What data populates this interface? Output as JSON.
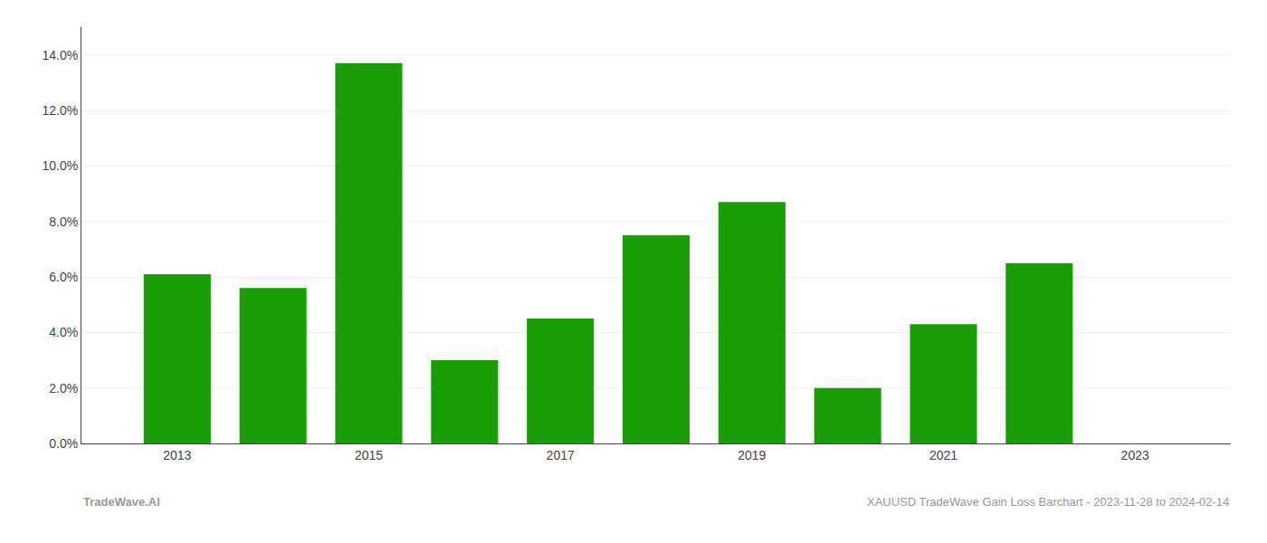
{
  "chart_data": {
    "type": "bar",
    "x": [
      2013,
      2014,
      2015,
      2016,
      2017,
      2018,
      2019,
      2020,
      2021,
      2022,
      2023
    ],
    "values": [
      0.061,
      0.056,
      0.137,
      0.03,
      0.045,
      0.075,
      0.087,
      0.02,
      0.043,
      0.065,
      0.0
    ],
    "color": "#1a9e06",
    "xlim": [
      2012,
      2024
    ],
    "xticks": [
      2013,
      2015,
      2017,
      2019,
      2021,
      2023
    ],
    "ylim": [
      0,
      0.15
    ],
    "yticks": [
      {
        "value": 0.0,
        "label": "0.0%"
      },
      {
        "value": 0.02,
        "label": "2.0%"
      },
      {
        "value": 0.04,
        "label": "4.0%"
      },
      {
        "value": 0.06,
        "label": "6.0%"
      },
      {
        "value": 0.08,
        "label": "8.0%"
      },
      {
        "value": 0.1,
        "label": "10.0%"
      },
      {
        "value": 0.12,
        "label": "12.0%"
      },
      {
        "value": 0.14,
        "label": "14.0%"
      }
    ],
    "grid": true,
    "annotations": [
      "TradeWave.AI",
      "XAUUSD TradeWave Gain Loss Barchart - 2023-11-28 to 2024-02-14"
    ]
  }
}
